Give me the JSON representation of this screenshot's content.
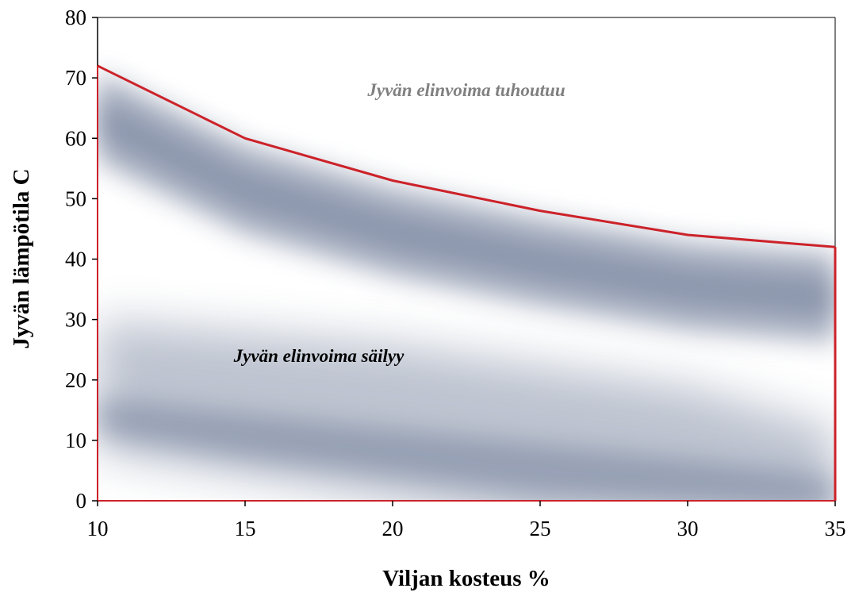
{
  "chart_data": {
    "type": "area",
    "title": "",
    "xlabel": "Viljan kosteus %",
    "ylabel": "Jyvän lämpötila C",
    "xlim": [
      10,
      35
    ],
    "ylim": [
      0,
      80
    ],
    "x_ticks": [
      10,
      15,
      20,
      25,
      30,
      35
    ],
    "y_ticks": [
      0,
      10,
      20,
      30,
      40,
      50,
      60,
      70,
      80
    ],
    "grid": false,
    "legend": "none",
    "series": [
      {
        "x": [
          10,
          15,
          20,
          25,
          30,
          35
        ],
        "y": [
          72,
          60,
          53,
          48,
          44,
          42
        ],
        "color": "#cc2229"
      }
    ],
    "annotations": [
      {
        "text": "Jyvän elinvoima tuhoutuu",
        "x": 22.5,
        "y": 67,
        "color": "#808080"
      },
      {
        "text": "Jyvän elinvoima säilyy",
        "x": 17.5,
        "y": 23,
        "color": "#000000"
      }
    ],
    "colors": {
      "boundary": "#cc2229",
      "shading": "#6f7d98",
      "axis": "#000000"
    }
  }
}
